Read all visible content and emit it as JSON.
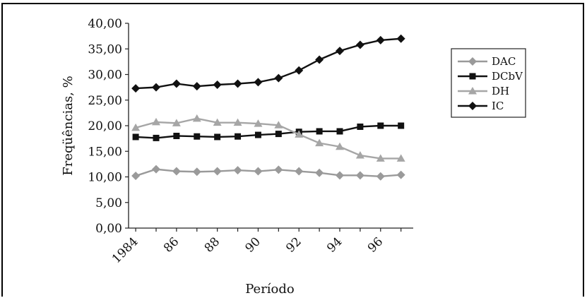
{
  "chart_data": {
    "type": "line",
    "title": "",
    "xlabel": "Período",
    "ylabel": "Freqüências, %",
    "ylim": [
      0,
      40
    ],
    "yticks": [
      "0,00",
      "5,00",
      "10,00",
      "15,00",
      "20,00",
      "25,00",
      "30,00",
      "35,00",
      "40,00"
    ],
    "x": [
      1984,
      1985,
      1986,
      1987,
      1988,
      1989,
      1990,
      1991,
      1992,
      1993,
      1994,
      1995,
      1996,
      1997
    ],
    "xtick_labels": [
      "1984",
      "86",
      "88",
      "90",
      "92",
      "94",
      "96"
    ],
    "legend_position": "right",
    "grid": false,
    "series": [
      {
        "name": "DAC",
        "color": "#9a9a9a",
        "marker": "diamond",
        "values": [
          10.2,
          11.5,
          11.1,
          11.0,
          11.1,
          11.3,
          11.1,
          11.4,
          11.1,
          10.8,
          10.3,
          10.3,
          10.1,
          10.4
        ]
      },
      {
        "name": "DCbV",
        "color": "#111111",
        "marker": "square",
        "values": [
          17.8,
          17.6,
          18.0,
          17.9,
          17.8,
          17.9,
          18.2,
          18.4,
          18.8,
          18.9,
          18.9,
          19.8,
          20.0,
          20.0
        ]
      },
      {
        "name": "DH",
        "color": "#a6a6a6",
        "marker": "triangle",
        "values": [
          19.6,
          20.7,
          20.5,
          21.4,
          20.6,
          20.6,
          20.4,
          20.1,
          18.3,
          16.6,
          15.9,
          14.2,
          13.6,
          13.6
        ]
      },
      {
        "name": "IC",
        "color": "#111111",
        "marker": "diamond",
        "values": [
          27.3,
          27.5,
          28.2,
          27.7,
          28.0,
          28.2,
          28.5,
          29.3,
          30.8,
          32.9,
          34.6,
          35.8,
          36.7,
          37.0
        ]
      }
    ]
  }
}
